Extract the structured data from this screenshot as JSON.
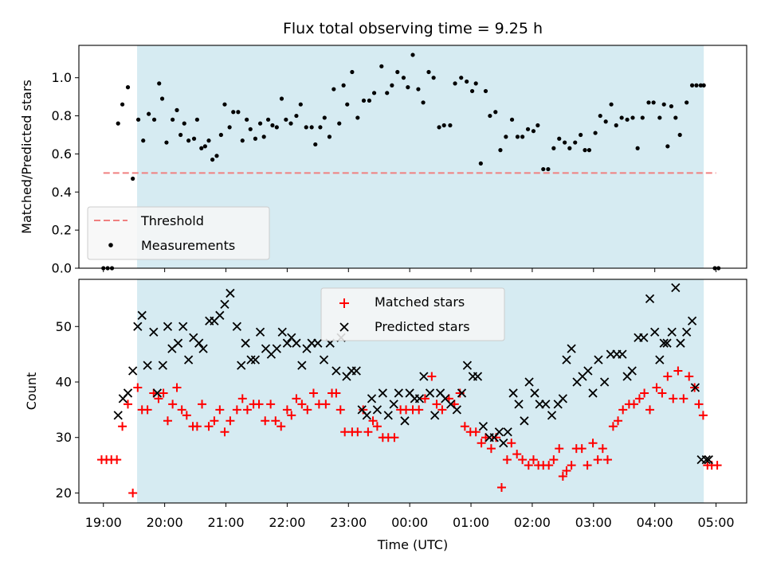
{
  "chart_data": [
    {
      "type": "scatter",
      "title": "Flux total observing time = 9.25 h",
      "xlabel": "",
      "ylabel": "Matched/Predicted stars",
      "xlim_hours": [
        18.6,
        29.5
      ],
      "ylim": [
        0.0,
        1.17
      ],
      "yticks": [
        0.0,
        0.2,
        0.4,
        0.6,
        0.8,
        1.0
      ],
      "ytick_labels": [
        "0.0",
        "0.2",
        "0.4",
        "0.6",
        "0.8",
        "1.0"
      ],
      "xticks_hours": [
        19,
        20,
        21,
        22,
        23,
        24,
        25,
        26,
        27,
        28,
        29
      ],
      "observing_window_hours": [
        19.55,
        28.8
      ],
      "threshold": {
        "label": "Threshold",
        "value": 0.5,
        "x_range_hours": [
          19.0,
          29.0
        ],
        "color": "#f08080"
      },
      "legend": {
        "location": "lower-left",
        "entries": [
          "Threshold",
          "Measurements"
        ]
      },
      "series": [
        {
          "name": "Measurements",
          "color": "#000000",
          "x": [
            19.0,
            19.07,
            19.14,
            19.24,
            19.31,
            19.4,
            19.48,
            19.57,
            19.65,
            19.74,
            19.83,
            19.91,
            19.96,
            20.03,
            20.13,
            20.2,
            20.26,
            20.32,
            20.39,
            20.48,
            20.53,
            20.6,
            20.66,
            20.72,
            20.78,
            20.85,
            20.92,
            20.98,
            21.06,
            21.12,
            21.2,
            21.27,
            21.34,
            21.4,
            21.48,
            21.56,
            21.62,
            21.69,
            21.76,
            21.83,
            21.91,
            21.98,
            22.06,
            22.15,
            22.22,
            22.31,
            22.4,
            22.46,
            22.54,
            22.61,
            22.69,
            22.76,
            22.85,
            22.92,
            22.98,
            23.06,
            23.15,
            23.25,
            23.34,
            23.42,
            23.54,
            23.63,
            23.71,
            23.8,
            23.9,
            23.97,
            24.05,
            24.14,
            24.22,
            24.31,
            24.39,
            24.48,
            24.56,
            24.66,
            24.74,
            24.84,
            24.93,
            25.02,
            25.08,
            25.16,
            25.24,
            25.31,
            25.4,
            25.48,
            25.57,
            25.67,
            25.76,
            25.84,
            25.93,
            26.02,
            26.09,
            26.18,
            26.26,
            26.35,
            26.44,
            26.53,
            26.61,
            26.7,
            26.79,
            26.86,
            26.93,
            27.03,
            27.11,
            27.2,
            27.29,
            27.37,
            27.46,
            27.55,
            27.64,
            27.72,
            27.8,
            27.9,
            27.98,
            28.08,
            28.15,
            28.21,
            28.27,
            28.34,
            28.41,
            28.52,
            28.61,
            28.68,
            28.75,
            28.8,
            28.98,
            29.04
          ],
          "y": [
            0.0,
            0.0,
            0.0,
            0.76,
            0.86,
            0.95,
            0.47,
            0.78,
            0.67,
            0.81,
            0.78,
            0.97,
            0.89,
            0.66,
            0.78,
            0.83,
            0.7,
            0.76,
            0.67,
            0.68,
            0.78,
            0.63,
            0.64,
            0.67,
            0.57,
            0.59,
            0.7,
            0.86,
            0.74,
            0.82,
            0.82,
            0.67,
            0.78,
            0.73,
            0.68,
            0.76,
            0.69,
            0.78,
            0.75,
            0.74,
            0.89,
            0.78,
            0.76,
            0.8,
            0.86,
            0.74,
            0.74,
            0.65,
            0.74,
            0.79,
            0.69,
            0.94,
            0.76,
            0.96,
            0.86,
            1.03,
            0.79,
            0.88,
            0.88,
            0.92,
            1.06,
            0.92,
            0.96,
            1.03,
            1.0,
            0.95,
            1.12,
            0.94,
            0.87,
            1.03,
            1.0,
            0.74,
            0.75,
            0.75,
            0.97,
            1.0,
            0.98,
            0.93,
            0.97,
            0.55,
            0.93,
            0.8,
            0.82,
            0.62,
            0.69,
            0.78,
            0.69,
            0.69,
            0.73,
            0.72,
            0.75,
            0.52,
            0.52,
            0.63,
            0.68,
            0.66,
            0.63,
            0.66,
            0.7,
            0.62,
            0.62,
            0.71,
            0.8,
            0.77,
            0.86,
            0.75,
            0.79,
            0.78,
            0.79,
            0.63,
            0.79,
            0.87,
            0.87,
            0.79,
            0.86,
            0.64,
            0.85,
            0.79,
            0.7,
            0.87,
            0.96,
            0.96,
            0.96,
            0.96,
            0.0,
            0.0
          ]
        }
      ]
    },
    {
      "type": "scatter",
      "title": "",
      "xlabel": "Time (UTC)",
      "ylabel": "Count",
      "xlim_hours": [
        18.6,
        29.5
      ],
      "ylim": [
        18.2,
        58.5
      ],
      "yticks": [
        20,
        30,
        40,
        50
      ],
      "ytick_labels": [
        "20",
        "30",
        "40",
        "50"
      ],
      "xticks_hours": [
        19,
        20,
        21,
        22,
        23,
        24,
        25,
        26,
        27,
        28,
        29
      ],
      "xtick_labels": [
        "19:00",
        "20:00",
        "21:00",
        "22:00",
        "23:00",
        "00:00",
        "01:00",
        "02:00",
        "03:00",
        "04:00",
        "05:00"
      ],
      "observing_window_hours": [
        19.55,
        28.8
      ],
      "legend": {
        "location": "upper-center",
        "entries": [
          "Matched stars",
          "Predicted stars"
        ]
      },
      "series": [
        {
          "name": "Matched stars",
          "marker": "+",
          "color": "#ff0000",
          "x": [
            18.97,
            19.05,
            19.13,
            19.22,
            19.31,
            19.4,
            19.48,
            19.56,
            19.63,
            19.72,
            19.82,
            19.9,
            19.98,
            20.05,
            20.13,
            20.2,
            20.28,
            20.36,
            20.46,
            20.53,
            20.61,
            20.72,
            20.81,
            20.9,
            20.98,
            21.07,
            21.18,
            21.27,
            21.35,
            21.45,
            21.54,
            21.64,
            21.73,
            21.81,
            21.9,
            22.0,
            22.07,
            22.15,
            22.24,
            22.33,
            22.43,
            22.52,
            22.63,
            22.73,
            22.8,
            22.87,
            22.94,
            23.06,
            23.15,
            23.24,
            23.32,
            23.4,
            23.47,
            23.56,
            23.65,
            23.75,
            23.85,
            23.94,
            24.05,
            24.15,
            24.25,
            24.36,
            24.44,
            24.53,
            24.64,
            24.73,
            24.82,
            24.9,
            24.99,
            25.08,
            25.17,
            25.24,
            25.33,
            25.41,
            25.5,
            25.59,
            25.66,
            25.75,
            25.84,
            25.94,
            26.02,
            26.1,
            26.18,
            26.27,
            26.35,
            26.44,
            26.5,
            26.56,
            26.64,
            26.72,
            26.81,
            26.9,
            26.99,
            27.07,
            27.15,
            27.23,
            27.32,
            27.4,
            27.48,
            27.58,
            27.66,
            27.75,
            27.83,
            27.92,
            28.03,
            28.12,
            28.21,
            28.3,
            28.38,
            28.47,
            28.56,
            28.65,
            28.72,
            28.79,
            28.86,
            28.93,
            29.02
          ],
          "y": [
            26,
            26,
            26,
            26,
            32,
            36,
            20,
            39,
            35,
            35,
            38,
            37,
            38,
            33,
            36,
            39,
            35,
            34,
            32,
            32,
            36,
            32,
            33,
            35,
            31,
            33,
            35,
            37,
            35,
            36,
            36,
            33,
            36,
            33,
            32,
            35,
            34,
            37,
            36,
            35,
            38,
            36,
            36,
            38,
            38,
            35,
            31,
            31,
            31,
            35,
            31,
            33,
            32,
            30,
            30,
            30,
            35,
            35,
            35,
            35,
            37,
            41,
            36,
            35,
            37,
            36,
            38,
            32,
            31,
            31,
            29,
            30,
            28,
            30,
            21,
            26,
            29,
            27,
            26,
            25,
            26,
            25,
            25,
            25,
            26,
            28,
            23,
            24,
            25,
            28,
            28,
            25,
            29,
            26,
            28,
            26,
            32,
            33,
            35,
            36,
            36,
            37,
            38,
            35,
            39,
            38,
            41,
            37,
            42,
            37,
            41,
            39,
            36,
            34,
            25,
            25,
            25
          ]
        },
        {
          "name": "Predicted stars",
          "marker": "x",
          "color": "#000000",
          "x": [
            19.24,
            19.32,
            19.4,
            19.48,
            19.56,
            19.63,
            19.72,
            19.82,
            19.88,
            19.97,
            20.05,
            20.12,
            20.22,
            20.3,
            20.39,
            20.47,
            20.56,
            20.63,
            20.73,
            20.81,
            20.9,
            20.98,
            21.07,
            21.18,
            21.25,
            21.32,
            21.41,
            21.48,
            21.56,
            21.65,
            21.74,
            21.83,
            21.92,
            22.0,
            22.07,
            22.15,
            22.24,
            22.32,
            22.4,
            22.5,
            22.6,
            22.7,
            22.8,
            22.88,
            22.97,
            23.05,
            23.13,
            23.22,
            23.3,
            23.38,
            23.47,
            23.56,
            23.65,
            23.74,
            23.82,
            23.92,
            24.0,
            24.08,
            24.16,
            24.23,
            24.33,
            24.41,
            24.5,
            24.58,
            24.67,
            24.77,
            24.85,
            24.94,
            25.03,
            25.11,
            25.2,
            25.3,
            25.38,
            25.46,
            25.53,
            25.6,
            25.69,
            25.78,
            25.87,
            25.95,
            26.04,
            26.12,
            26.22,
            26.32,
            26.42,
            26.5,
            26.56,
            26.64,
            26.73,
            26.82,
            26.91,
            26.99,
            27.08,
            27.18,
            27.28,
            27.38,
            27.47,
            27.55,
            27.63,
            27.73,
            27.82,
            27.92,
            28.0,
            28.08,
            28.15,
            28.2,
            28.28,
            28.34,
            28.42,
            28.52,
            28.61,
            28.66,
            28.76,
            28.84,
            28.88
          ],
          "y": [
            34,
            37,
            38,
            42,
            50,
            52,
            43,
            49,
            38,
            43,
            50,
            46,
            47,
            50,
            44,
            48,
            47,
            46,
            51,
            51,
            52,
            54,
            56,
            50,
            43,
            47,
            44,
            44,
            49,
            46,
            45,
            46,
            49,
            47,
            48,
            47,
            43,
            46,
            47,
            47,
            44,
            47,
            42,
            48,
            41,
            42,
            42,
            35,
            34,
            37,
            35,
            38,
            34,
            36,
            38,
            33,
            38,
            37,
            37,
            41,
            38,
            34,
            38,
            37,
            36,
            35,
            38,
            43,
            41,
            41,
            32,
            30,
            30,
            31,
            29,
            31,
            38,
            36,
            33,
            40,
            38,
            36,
            36,
            34,
            36,
            37,
            44,
            46,
            40,
            41,
            42,
            38,
            44,
            40,
            45,
            45,
            45,
            41,
            42,
            48,
            48,
            55,
            49,
            44,
            47,
            47,
            49,
            57,
            47,
            49,
            51,
            39,
            26,
            26,
            26
          ]
        }
      ]
    }
  ]
}
